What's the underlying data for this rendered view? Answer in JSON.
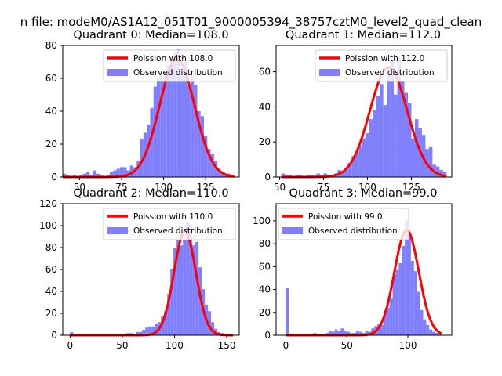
{
  "figure": {
    "suptitle": "n file: modeM0/AS1A12_051T01_9000005394_38757cztM0_level2_quad_clean"
  },
  "colors": {
    "hist": "#8080ff",
    "curve": "#ff0000",
    "curve_halo": "#ff9090",
    "axis": "#000000"
  },
  "chart_data": [
    {
      "type": "bar",
      "title": "Quadrant 0: Median=108.0",
      "xlabel": "",
      "ylabel": "",
      "xlim": [
        40,
        145
      ],
      "ylim": [
        0,
        80
      ],
      "xticks": [
        50,
        75,
        100,
        125
      ],
      "yticks": [
        0,
        20,
        40,
        60,
        80
      ],
      "bin_width": 2,
      "hist_x": [
        41,
        43,
        45,
        47,
        49,
        51,
        53,
        55,
        57,
        59,
        61,
        63,
        65,
        67,
        69,
        71,
        73,
        75,
        77,
        79,
        81,
        83,
        85,
        87,
        89,
        91,
        93,
        95,
        97,
        99,
        101,
        103,
        105,
        107,
        109,
        111,
        113,
        115,
        117,
        119,
        121,
        123,
        125,
        127,
        129,
        131,
        133,
        135,
        137,
        139,
        141
      ],
      "hist_values": [
        2,
        1,
        0,
        1,
        0,
        1,
        2,
        3,
        1,
        4,
        2,
        1,
        0,
        1,
        3,
        4,
        5,
        6,
        6,
        4,
        7,
        6,
        10,
        23,
        27,
        32,
        42,
        55,
        60,
        62,
        64,
        68,
        73,
        76,
        78,
        66,
        70,
        56,
        61,
        56,
        40,
        37,
        25,
        17,
        14,
        10,
        5,
        3,
        2,
        2,
        1
      ],
      "poisson_mean": 108.0,
      "legend": [
        "Poission with 108.0",
        "Observed distribution"
      ],
      "legend_loc": "upper right"
    },
    {
      "type": "bar",
      "title": "Quadrant 1: Median=112.0",
      "xlabel": "",
      "ylabel": "",
      "xlim": [
        48,
        148
      ],
      "ylim": [
        0,
        75
      ],
      "xticks": [
        50,
        75,
        100,
        125
      ],
      "yticks": [
        0,
        20,
        40,
        60
      ],
      "bin_width": 2,
      "hist_x": [
        52,
        54,
        56,
        58,
        60,
        62,
        64,
        66,
        68,
        70,
        72,
        74,
        76,
        78,
        80,
        82,
        84,
        86,
        88,
        90,
        92,
        94,
        96,
        98,
        100,
        102,
        104,
        106,
        108,
        110,
        112,
        114,
        116,
        118,
        120,
        122,
        124,
        126,
        128,
        130,
        132,
        134,
        136,
        138,
        140,
        142,
        144
      ],
      "hist_values": [
        2,
        1,
        1,
        0,
        1,
        1,
        0,
        1,
        1,
        1,
        2,
        1,
        2,
        1,
        1,
        2,
        4,
        3,
        5,
        8,
        12,
        14,
        18,
        22,
        25,
        33,
        38,
        46,
        53,
        41,
        62,
        66,
        47,
        68,
        55,
        48,
        42,
        22,
        33,
        28,
        24,
        16,
        17,
        7,
        6,
        4,
        3
      ],
      "poisson_mean": 112.0,
      "legend": [
        "Poission with 112.0",
        "Observed distribution"
      ],
      "legend_loc": "upper right"
    },
    {
      "type": "bar",
      "title": "Quadrant 2: Median=110.0",
      "xlabel": "",
      "ylabel": "",
      "xlim": [
        -7,
        162
      ],
      "ylim": [
        0,
        120
      ],
      "xticks": [
        0,
        50,
        100,
        150
      ],
      "yticks": [
        0,
        20,
        40,
        60,
        80,
        100,
        120
      ],
      "bin_width": 3,
      "hist_x": [
        1.5,
        4.5,
        7.5,
        10.5,
        13.5,
        16.5,
        19.5,
        22.5,
        25.5,
        28.5,
        31.5,
        34.5,
        37.5,
        40.5,
        43.5,
        46.5,
        49.5,
        52.5,
        55.5,
        58.5,
        61.5,
        64.5,
        67.5,
        70.5,
        73.5,
        76.5,
        79.5,
        82.5,
        85.5,
        88.5,
        91.5,
        94.5,
        97.5,
        100.5,
        103.5,
        106.5,
        109.5,
        112.5,
        115.5,
        118.5,
        121.5,
        124.5,
        127.5,
        130.5,
        133.5,
        136.5,
        139.5,
        142.5,
        145.5,
        148.5,
        151.5,
        154.5
      ],
      "hist_values": [
        3,
        0,
        1,
        1,
        0,
        1,
        1,
        1,
        1,
        0,
        1,
        1,
        0,
        1,
        0,
        1,
        1,
        1,
        2,
        2,
        1,
        3,
        3,
        5,
        7,
        8,
        8,
        10,
        12,
        17,
        22,
        38,
        60,
        80,
        87,
        82,
        87,
        103,
        101,
        82,
        85,
        62,
        42,
        28,
        22,
        12,
        6,
        3,
        2,
        1,
        1,
        1
      ],
      "poisson_mean": 110.0,
      "legend": [
        "Poission with 110.0",
        "Observed distribution"
      ],
      "legend_loc": "upper right"
    },
    {
      "type": "bar",
      "title": "Quadrant 3: Median=99.0",
      "xlabel": "",
      "ylabel": "",
      "xlim": [
        -8,
        136
      ],
      "ylim": [
        0,
        115
      ],
      "xticks": [
        0,
        50,
        100
      ],
      "yticks": [
        0,
        20,
        40,
        60,
        80,
        100
      ],
      "bin_width": 2.5,
      "hist_x": [
        1.25,
        3.75,
        6.25,
        8.75,
        11.25,
        13.75,
        16.25,
        18.75,
        21.25,
        23.75,
        26.25,
        28.75,
        31.25,
        33.75,
        36.25,
        38.75,
        41.25,
        43.75,
        46.25,
        48.75,
        51.25,
        53.75,
        56.25,
        58.75,
        61.25,
        63.75,
        66.25,
        68.75,
        71.25,
        73.75,
        76.25,
        78.75,
        81.25,
        83.75,
        86.25,
        88.75,
        91.25,
        93.75,
        96.25,
        98.75,
        101.25,
        103.75,
        106.25,
        108.75,
        111.25,
        113.75,
        116.25,
        118.75,
        121.25,
        123.75,
        126.25
      ],
      "hist_values": [
        41,
        0,
        0,
        0,
        0,
        1,
        0,
        1,
        1,
        2,
        1,
        1,
        0,
        2,
        4,
        3,
        5,
        4,
        6,
        4,
        3,
        2,
        2,
        4,
        3,
        2,
        4,
        3,
        6,
        8,
        10,
        9,
        22,
        24,
        32,
        53,
        57,
        63,
        78,
        100,
        88,
        65,
        56,
        38,
        22,
        14,
        9,
        5,
        3,
        2,
        1
      ],
      "poisson_mean": 99.0,
      "legend": [
        "Poission with 99.0",
        "Observed distribution"
      ],
      "legend_loc": "upper left"
    }
  ]
}
